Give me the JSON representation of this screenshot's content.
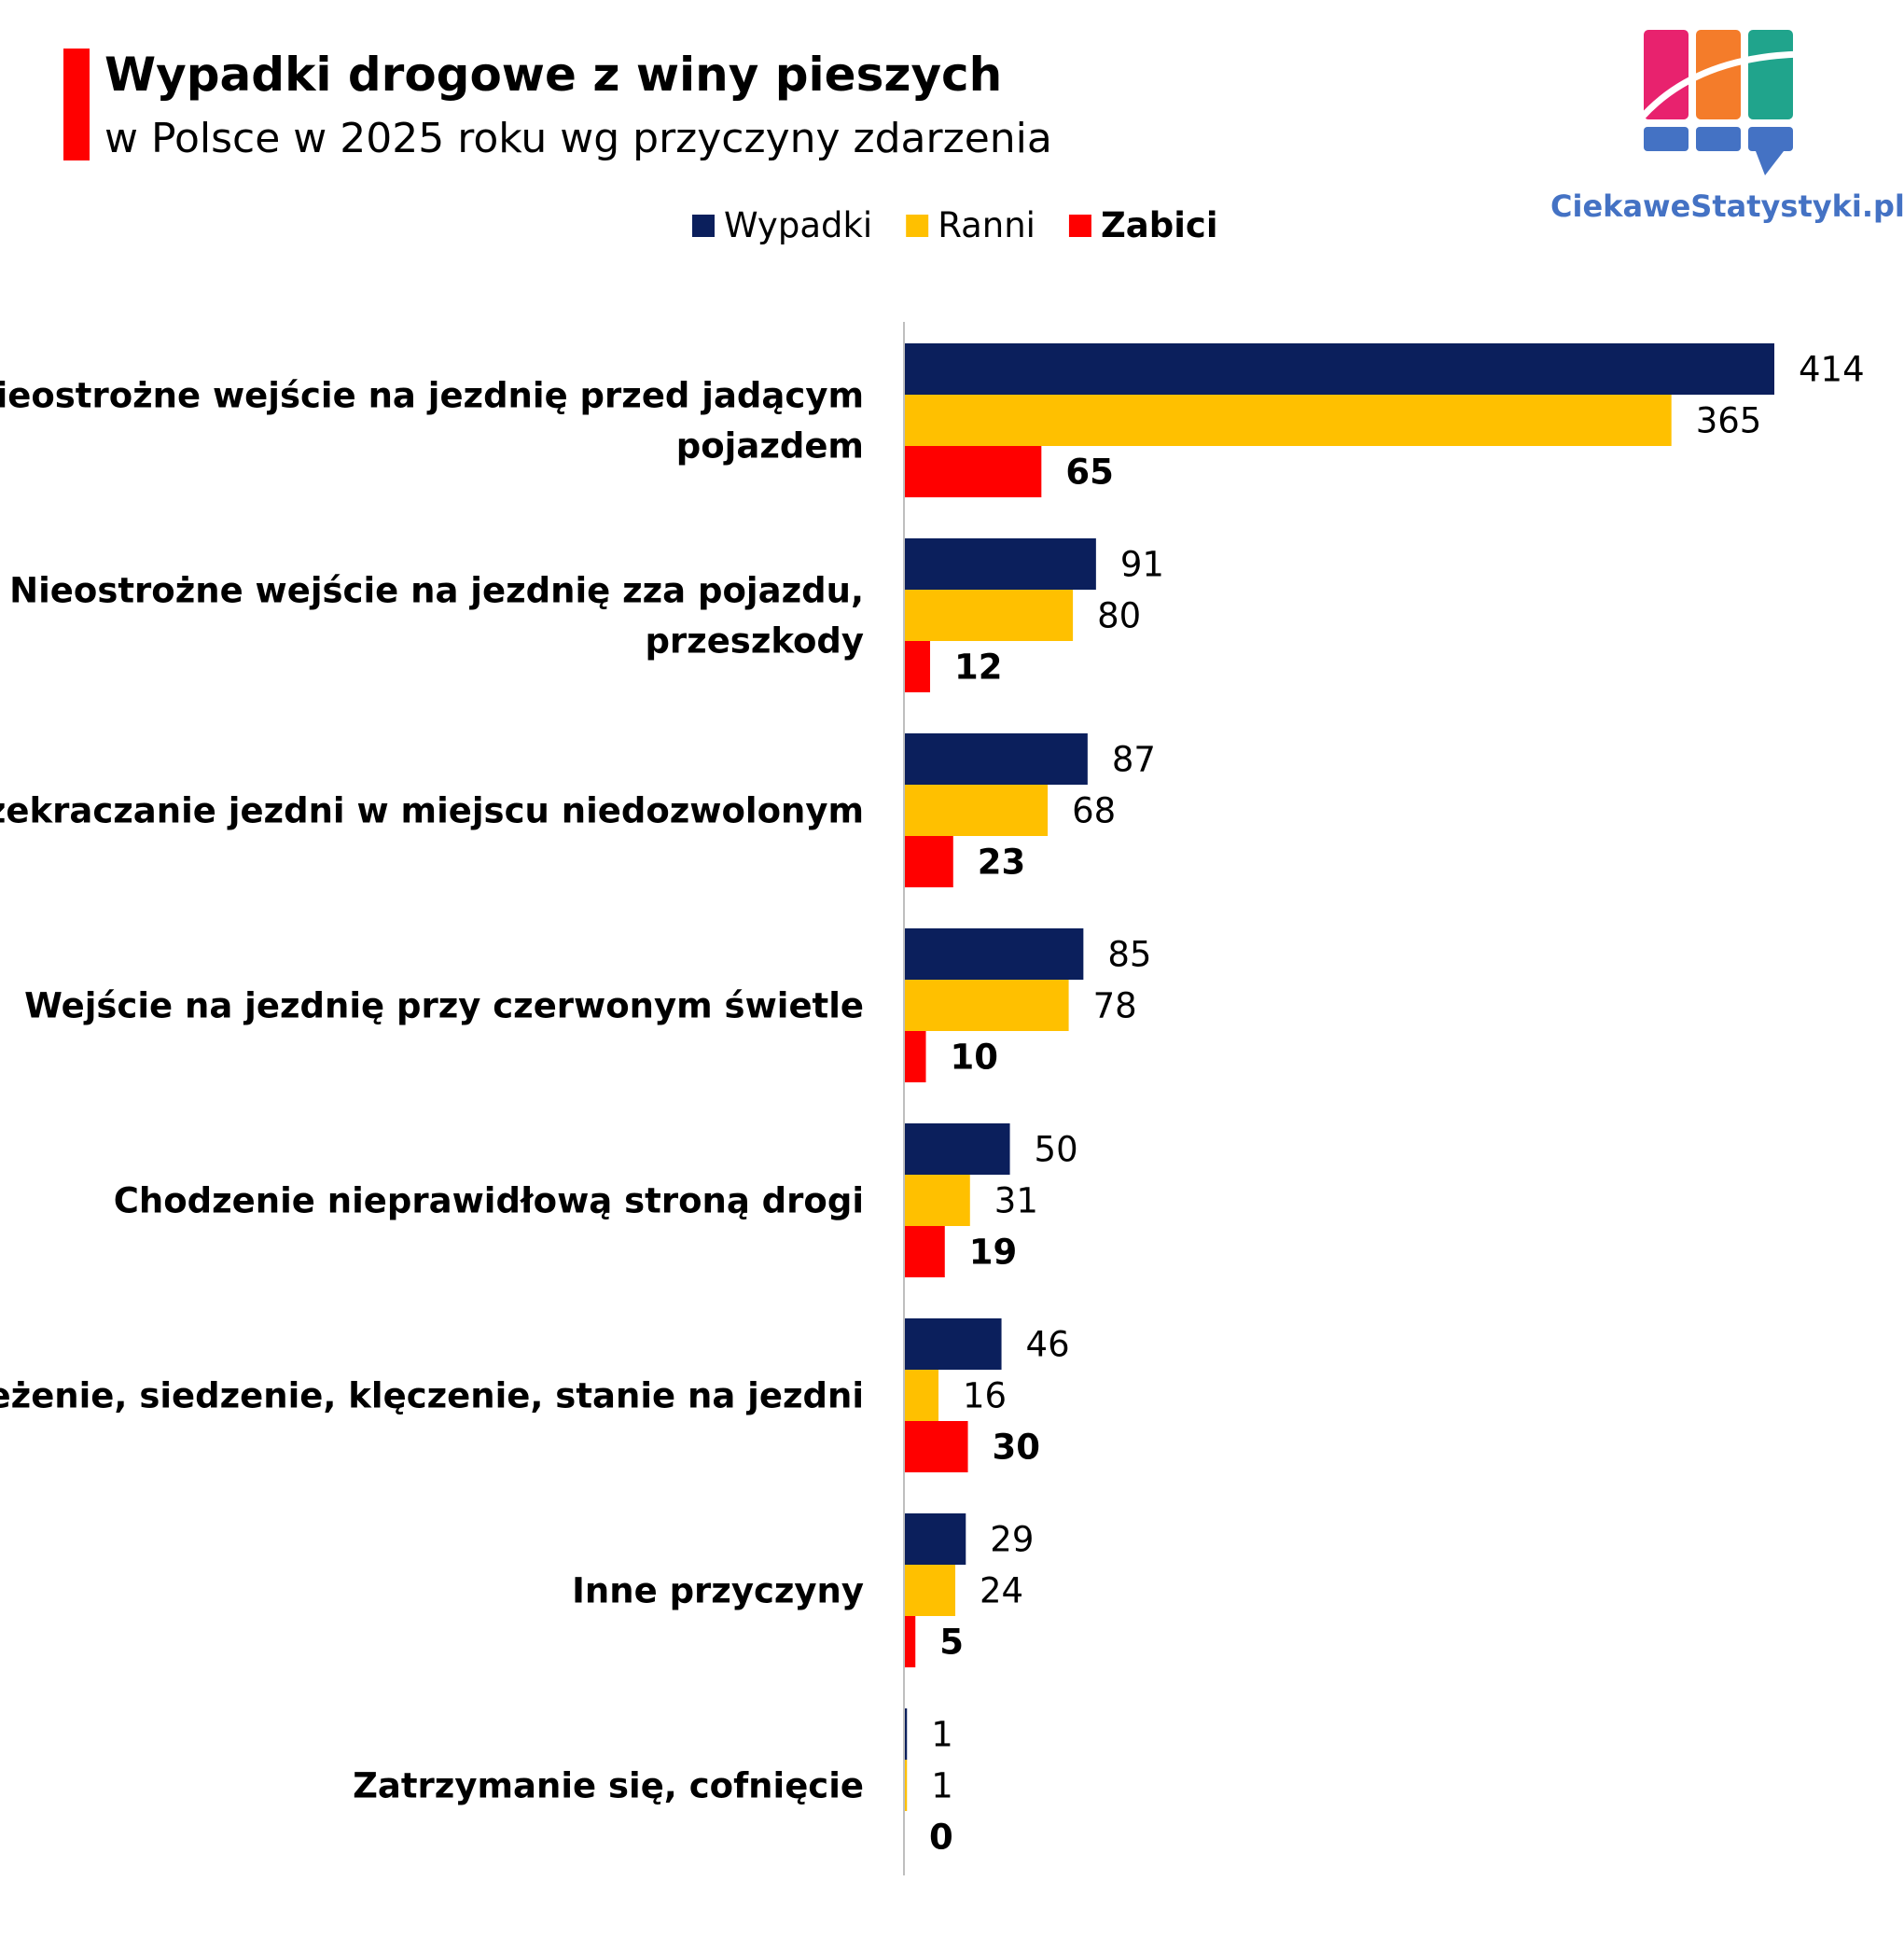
{
  "title": "Wypadki drogowe z winy pieszych",
  "subtitle": "w Polsce w 2025 roku wg przyczyny zdarzenia",
  "brand": "CiekaweStatystyki.pl",
  "logo_icon": "bar-chart-logo-icon",
  "colors": {
    "accent": "#ff0000",
    "wypadki": "#0b1f5c",
    "ranni": "#ffc000",
    "zabici": "#ff0000",
    "axis": "#bfbfbf",
    "logo_pink": "#e8226e",
    "logo_orange": "#f47c2a",
    "logo_teal": "#20a48c",
    "logo_blue": "#4472c4",
    "brand_text": "#4472c4"
  },
  "chart_data": {
    "type": "bar",
    "orientation": "horizontal",
    "categories": [
      "Nieostrożne wejście na jezdnię przed jadącym pojazdem",
      "Nieostrożne wejście na jezdnię zza pojazdu, przeszkody",
      "Przekraczanie jezdni w miejscu niedozwolonym",
      "Wejście na jezdnię przy czerwonym świetle",
      "Chodzenie nieprawidłową stroną drogi",
      "Leżenie, siedzenie, klęczenie, stanie na jezdni",
      "Inne przyczyny",
      "Zatrzymanie się, cofnięcie"
    ],
    "category_lines": [
      [
        "Nieostrożne wejście na jezdnię przed jadącym",
        "pojazdem"
      ],
      [
        "Nieostrożne wejście na jezdnię zza pojazdu,",
        "przeszkody"
      ],
      [
        "Przekraczanie jezdni w miejscu niedozwolonym"
      ],
      [
        "Wejście na jezdnię przy czerwonym świetle"
      ],
      [
        "Chodzenie nieprawidłową stroną drogi"
      ],
      [
        "Leżenie, siedzenie, klęczenie, stanie na jezdni"
      ],
      [
        "Inne przyczyny"
      ],
      [
        "Zatrzymanie się, cofnięcie"
      ]
    ],
    "series": [
      {
        "name": "Wypadki",
        "color": "#0b1f5c",
        "bold_labels": false,
        "values": [
          414,
          91,
          87,
          85,
          50,
          46,
          29,
          1
        ]
      },
      {
        "name": "Ranni",
        "color": "#ffc000",
        "bold_labels": false,
        "values": [
          365,
          80,
          68,
          78,
          31,
          16,
          24,
          1
        ]
      },
      {
        "name": "Zabici",
        "color": "#ff0000",
        "bold_labels": true,
        "values": [
          65,
          12,
          23,
          10,
          19,
          30,
          5,
          0
        ]
      }
    ],
    "xlim": [
      0,
      414
    ],
    "legend_position": "top",
    "grid": false
  }
}
